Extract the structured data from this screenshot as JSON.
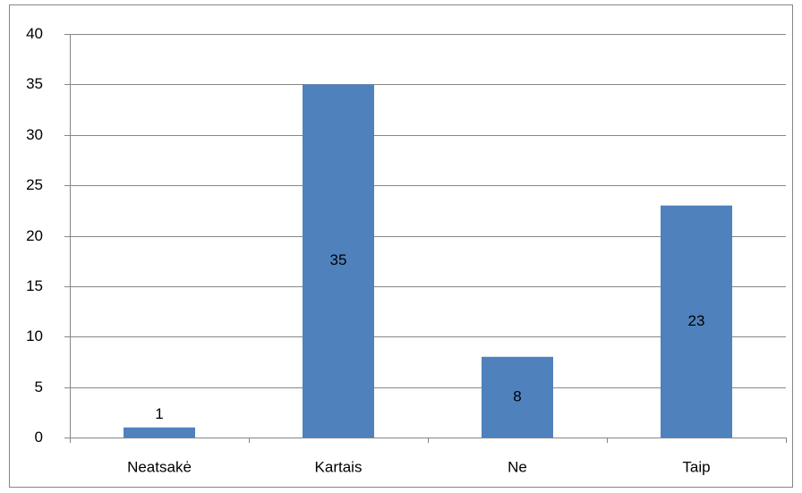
{
  "chart_data": {
    "type": "bar",
    "categories": [
      "Neatsakė",
      "Kartais",
      "Ne",
      "Taip"
    ],
    "values": [
      1,
      35,
      8,
      23
    ],
    "color": "#4f81bd",
    "ylim": [
      0,
      40
    ],
    "yticks": [
      0,
      5,
      10,
      15,
      20,
      25,
      30,
      35,
      40
    ],
    "grid": true
  }
}
